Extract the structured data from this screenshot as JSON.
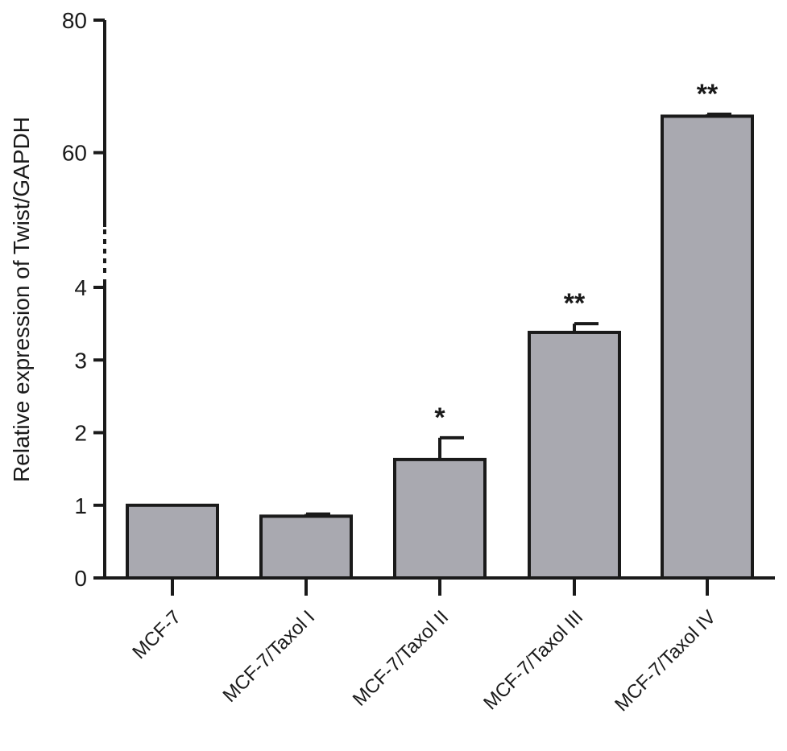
{
  "chart_data": {
    "type": "bar",
    "ylabel": "Relative expression of  Twist/GAPDH",
    "xlabel": "",
    "y_axis": {
      "broken": true,
      "lower_segment": {
        "range": [
          0,
          4
        ],
        "ticks": [
          "0",
          "1",
          "2",
          "3",
          "4"
        ]
      },
      "upper_segment": {
        "range": [
          50,
          80
        ],
        "ticks": [
          "60",
          "80"
        ]
      }
    },
    "categories": [
      "MCF-7",
      "MCF-7/Taxol I",
      "MCF-7/Taxol II",
      "MCF-7/Taxol III",
      "MCF-7/Taxol IV"
    ],
    "values": [
      1.0,
      0.85,
      1.63,
      3.38,
      65.5
    ],
    "error": [
      0.0,
      0.03,
      0.3,
      0.12,
      0.3
    ],
    "annotations": [
      "",
      "",
      "*",
      "**",
      "**"
    ],
    "bar_color": "#a9a9b0",
    "grid": false
  }
}
